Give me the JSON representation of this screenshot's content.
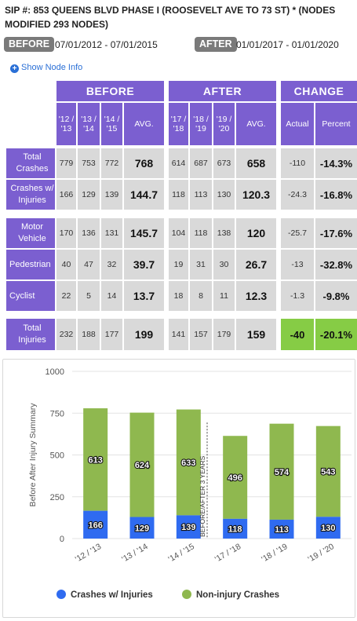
{
  "header": {
    "sip_label": "SIP #:",
    "sip_value": "853 QUEENS BLVD PHASE I (ROOSEVELT AVE TO 73 ST) * (NODES MODIFIED 293 NODES)"
  },
  "periods": {
    "before_tag": "BEFORE",
    "before_range": "07/01/2012 - 07/01/2015",
    "after_tag": "AFTER",
    "after_range": "01/01/2017 - 01/01/2020"
  },
  "show_node_info": "Show Node Info",
  "table": {
    "group_headers": {
      "before": "BEFORE",
      "after": "AFTER",
      "change": "CHANGE"
    },
    "before_cols": [
      "'12 / '13",
      "'13 / '14",
      "'14 / '15"
    ],
    "after_cols": [
      "'17 / '18",
      "'18 / '19",
      "'19 / '20"
    ],
    "avg_label": "AVG.",
    "actual_label": "Actual",
    "percent_label": "Percent",
    "rows": [
      {
        "label": "Total Crashes",
        "before": [
          "779",
          "753",
          "772"
        ],
        "before_avg": "768",
        "after": [
          "614",
          "687",
          "673"
        ],
        "after_avg": "658",
        "actual": "-110",
        "percent": "-14.3%"
      },
      {
        "label": "Crashes w/ Injuries",
        "before": [
          "166",
          "129",
          "139"
        ],
        "before_avg": "144.7",
        "after": [
          "118",
          "113",
          "130"
        ],
        "after_avg": "120.3",
        "actual": "-24.3",
        "percent": "-16.8%"
      },
      {
        "label": "Motor Vehicle",
        "before": [
          "170",
          "136",
          "131"
        ],
        "before_avg": "145.7",
        "after": [
          "104",
          "118",
          "138"
        ],
        "after_avg": "120",
        "actual": "-25.7",
        "percent": "-17.6%"
      },
      {
        "label": "Pedestrian",
        "before": [
          "40",
          "47",
          "32"
        ],
        "before_avg": "39.7",
        "after": [
          "19",
          "31",
          "30"
        ],
        "after_avg": "26.7",
        "actual": "-13",
        "percent": "-32.8%"
      },
      {
        "label": "Cyclist",
        "before": [
          "22",
          "5",
          "14"
        ],
        "before_avg": "13.7",
        "after": [
          "18",
          "8",
          "11"
        ],
        "after_avg": "12.3",
        "actual": "-1.3",
        "percent": "-9.8%"
      },
      {
        "label": "Total Injuries",
        "before": [
          "232",
          "188",
          "177"
        ],
        "before_avg": "199",
        "after": [
          "141",
          "157",
          "179"
        ],
        "after_avg": "159",
        "actual": "-40",
        "percent": "-20.1%"
      }
    ]
  },
  "colors": {
    "purple": "#7b5fd0",
    "gray_cell": "#d9d9d9",
    "green_highlight": "#86cc45",
    "injury_series": "#2f6bf0",
    "noninjury_series": "#8fb84f"
  },
  "chart_data": {
    "type": "bar",
    "stacked": true,
    "categories": [
      "'12 / '13",
      "'13 / '14",
      "'14 / '15",
      "'17 / '18",
      "'18 / '19",
      "'19 / '20"
    ],
    "series": [
      {
        "name": "Crashes w/ Injuries",
        "values": [
          166,
          129,
          139,
          118,
          113,
          130
        ],
        "color": "#2f6bf0"
      },
      {
        "name": "Non-injury Crashes",
        "values": [
          613,
          624,
          633,
          496,
          574,
          543
        ],
        "color": "#8fb84f"
      }
    ],
    "ylabel": "Before After Injury Summary",
    "ylim": [
      0,
      1000
    ],
    "yticks": [
      0,
      250,
      500,
      750,
      1000
    ],
    "divider_label": "BEFORE/AFTER 3 YEARS",
    "grid": true,
    "legend": "bottom"
  }
}
